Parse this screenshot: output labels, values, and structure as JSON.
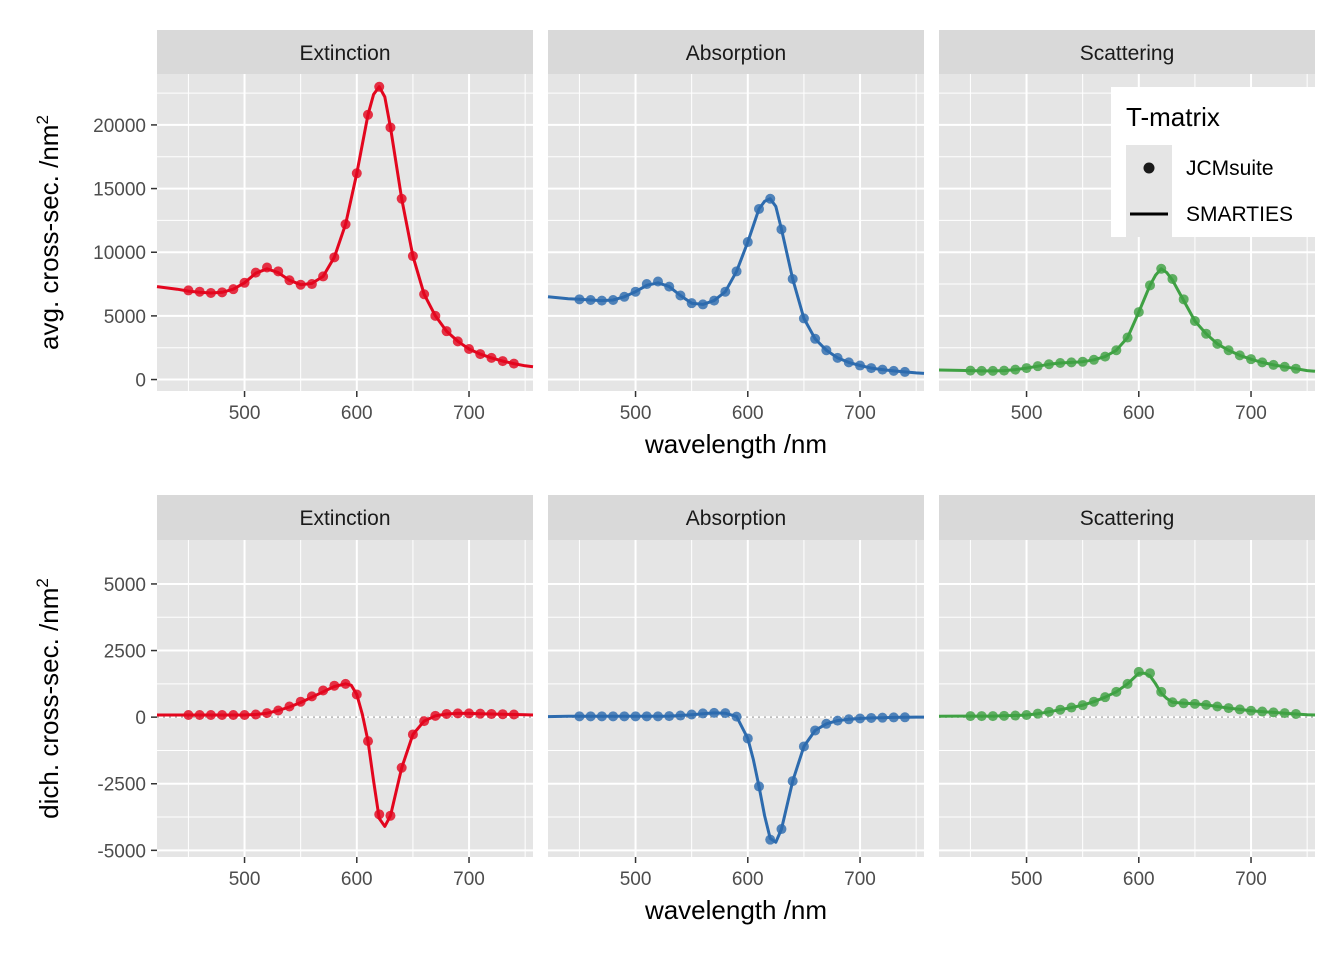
{
  "chart_data": {
    "type": "line",
    "facet_labels": [
      "Extinction",
      "Absorption",
      "Scattering"
    ],
    "x_axis": {
      "title": "wavelength /nm",
      "range": [
        422,
        757
      ],
      "ticks": [
        500,
        600,
        700
      ],
      "minor_ticks": [
        450,
        550,
        650,
        750
      ]
    },
    "rows": [
      {
        "ylabel": "avg. cross-sec. /nm",
        "ylabel_sup": "2",
        "y_range": [
          -900,
          24000
        ],
        "y_ticks": [
          0,
          5000,
          10000,
          15000,
          20000
        ],
        "y_tick_labels": [
          "0",
          "5000",
          "10000",
          "15000",
          "20000"
        ],
        "y_minor_ticks": [
          2500,
          7500,
          12500,
          17500,
          22500
        ],
        "zero_line": false,
        "panels": [
          {
            "facet": "Extinction",
            "color": "#E3061E",
            "line_x": [
              422,
              440,
              450,
              460,
              470,
              480,
              490,
              500,
              510,
              520,
              530,
              540,
              550,
              560,
              570,
              580,
              590,
              600,
              610,
              615,
              620,
              625,
              630,
              640,
              650,
              660,
              670,
              680,
              690,
              700,
              710,
              720,
              730,
              740,
              750,
              757
            ],
            "line_y": [
              7300,
              7100,
              6950,
              6850,
              6800,
              6850,
              7100,
              7600,
              8350,
              8700,
              8400,
              7800,
              7450,
              7550,
              8100,
              9600,
              12200,
              16200,
              20800,
              22400,
              23000,
              22200,
              19800,
              14200,
              9700,
              6700,
              5000,
              3800,
              3000,
              2400,
              2000,
              1700,
              1450,
              1250,
              1080,
              1000
            ],
            "point_x": [
              450,
              460,
              470,
              480,
              490,
              500,
              510,
              520,
              530,
              540,
              550,
              560,
              570,
              580,
              590,
              600,
              610,
              620,
              630,
              640,
              650,
              660,
              670,
              680,
              690,
              700,
              710,
              720,
              730,
              740
            ],
            "point_y": [
              7000,
              6900,
              6800,
              6850,
              7100,
              7600,
              8400,
              8800,
              8500,
              7800,
              7450,
              7500,
              8100,
              9600,
              12200,
              16200,
              20800,
              23000,
              19800,
              14200,
              9700,
              6700,
              5000,
              3800,
              3000,
              2400,
              2000,
              1700,
              1450,
              1250
            ]
          },
          {
            "facet": "Absorption",
            "color": "#2D6BAE",
            "line_x": [
              422,
              440,
              450,
              460,
              470,
              480,
              490,
              500,
              510,
              520,
              530,
              540,
              550,
              560,
              570,
              580,
              590,
              600,
              610,
              615,
              620,
              625,
              630,
              640,
              650,
              660,
              670,
              680,
              690,
              700,
              710,
              720,
              730,
              740,
              750,
              757
            ],
            "line_y": [
              6500,
              6350,
              6300,
              6250,
              6200,
              6250,
              6500,
              6900,
              7400,
              7600,
              7300,
              6600,
              6000,
              5900,
              6200,
              6900,
              8500,
              10800,
              13400,
              14000,
              14200,
              13600,
              11800,
              7900,
              4800,
              3200,
              2300,
              1700,
              1350,
              1100,
              900,
              780,
              680,
              600,
              520,
              480
            ],
            "point_x": [
              450,
              460,
              470,
              480,
              490,
              500,
              510,
              520,
              530,
              540,
              550,
              560,
              570,
              580,
              590,
              600,
              610,
              620,
              630,
              640,
              650,
              660,
              670,
              680,
              690,
              700,
              710,
              720,
              730,
              740
            ],
            "point_y": [
              6300,
              6250,
              6200,
              6250,
              6500,
              6900,
              7500,
              7700,
              7300,
              6600,
              6000,
              5900,
              6200,
              6900,
              8500,
              10800,
              13400,
              14200,
              11800,
              7900,
              4800,
              3200,
              2300,
              1700,
              1350,
              1100,
              900,
              780,
              680,
              600
            ]
          },
          {
            "facet": "Scattering",
            "color": "#3FA143",
            "line_x": [
              422,
              440,
              450,
              460,
              470,
              480,
              490,
              500,
              510,
              520,
              530,
              540,
              550,
              560,
              570,
              580,
              590,
              600,
              610,
              615,
              620,
              625,
              630,
              640,
              650,
              660,
              670,
              680,
              690,
              700,
              710,
              720,
              730,
              740,
              750,
              757
            ],
            "line_y": [
              750,
              720,
              700,
              680,
              680,
              700,
              780,
              900,
              1050,
              1200,
              1300,
              1350,
              1400,
              1550,
              1800,
              2300,
              3300,
              5300,
              7400,
              8200,
              8700,
              8400,
              7800,
              6200,
              4600,
              3600,
              2800,
              2300,
              1900,
              1600,
              1350,
              1150,
              1000,
              850,
              700,
              650
            ],
            "point_x": [
              450,
              460,
              470,
              480,
              490,
              500,
              510,
              520,
              530,
              540,
              550,
              560,
              570,
              580,
              590,
              600,
              610,
              620,
              630,
              640,
              650,
              660,
              670,
              680,
              690,
              700,
              710,
              720,
              730,
              740
            ],
            "point_y": [
              700,
              680,
              680,
              700,
              780,
              900,
              1050,
              1200,
              1300,
              1350,
              1400,
              1550,
              1800,
              2300,
              3300,
              5300,
              7400,
              8700,
              7900,
              6300,
              4600,
              3600,
              2800,
              2300,
              1900,
              1600,
              1350,
              1150,
              1000,
              850
            ]
          }
        ]
      },
      {
        "ylabel": "dich. cross-sec. /nm",
        "ylabel_sup": "2",
        "y_range": [
          -5250,
          6650
        ],
        "y_ticks": [
          -5000,
          -2500,
          0,
          2500,
          5000
        ],
        "y_tick_labels": [
          "-5000",
          "-2500",
          "0",
          "2500",
          "5000"
        ],
        "y_minor_ticks": [
          -3750,
          -1250,
          1250,
          3750
        ],
        "zero_line": true,
        "panels": [
          {
            "facet": "Extinction",
            "color": "#E3061E",
            "line_x": [
              422,
              440,
              450,
              460,
              470,
              480,
              490,
              500,
              510,
              520,
              530,
              540,
              550,
              560,
              570,
              580,
              590,
              595,
              600,
              605,
              610,
              615,
              620,
              625,
              630,
              635,
              640,
              650,
              660,
              670,
              680,
              690,
              700,
              710,
              720,
              730,
              740,
              750,
              757
            ],
            "line_y": [
              80,
              80,
              80,
              80,
              80,
              80,
              80,
              80,
              100,
              150,
              250,
              380,
              550,
              750,
              950,
              1150,
              1250,
              1200,
              850,
              100,
              -900,
              -2400,
              -3800,
              -4100,
              -3700,
              -2800,
              -1900,
              -650,
              -150,
              50,
              120,
              140,
              140,
              130,
              120,
              110,
              100,
              90,
              80
            ],
            "point_x": [
              450,
              460,
              470,
              480,
              490,
              500,
              510,
              520,
              530,
              540,
              550,
              560,
              570,
              580,
              590,
              600,
              610,
              620,
              630,
              640,
              650,
              660,
              670,
              680,
              690,
              700,
              710,
              720,
              730,
              740
            ],
            "point_y": [
              80,
              80,
              80,
              80,
              80,
              80,
              100,
              150,
              250,
              400,
              580,
              780,
              1000,
              1180,
              1250,
              850,
              -900,
              -3650,
              -3700,
              -1900,
              -650,
              -150,
              50,
              120,
              140,
              140,
              130,
              120,
              110,
              100
            ]
          },
          {
            "facet": "Absorption",
            "color": "#2D6BAE",
            "line_x": [
              422,
              440,
              450,
              460,
              470,
              480,
              490,
              500,
              510,
              520,
              530,
              540,
              550,
              560,
              570,
              580,
              590,
              600,
              605,
              610,
              615,
              620,
              625,
              630,
              635,
              640,
              650,
              660,
              670,
              680,
              690,
              700,
              710,
              720,
              730,
              740,
              750,
              757
            ],
            "line_y": [
              20,
              30,
              30,
              30,
              30,
              30,
              30,
              30,
              30,
              30,
              40,
              60,
              90,
              130,
              160,
              150,
              20,
              -800,
              -1600,
              -2600,
              -3700,
              -4550,
              -4700,
              -4200,
              -3300,
              -2400,
              -1100,
              -500,
              -250,
              -130,
              -80,
              -50,
              -30,
              -20,
              -10,
              -5,
              0,
              0
            ],
            "point_x": [
              450,
              460,
              470,
              480,
              490,
              500,
              510,
              520,
              530,
              540,
              550,
              560,
              570,
              580,
              590,
              600,
              610,
              620,
              630,
              640,
              650,
              660,
              670,
              680,
              690,
              700,
              710,
              720,
              730,
              740
            ],
            "point_y": [
              30,
              30,
              30,
              30,
              30,
              30,
              30,
              30,
              40,
              60,
              100,
              140,
              160,
              150,
              20,
              -800,
              -2600,
              -4600,
              -4200,
              -2400,
              -1100,
              -500,
              -250,
              -130,
              -80,
              -50,
              -30,
              -20,
              -10,
              -5
            ]
          },
          {
            "facet": "Scattering",
            "color": "#3FA143",
            "line_x": [
              422,
              440,
              450,
              460,
              470,
              480,
              490,
              500,
              510,
              520,
              530,
              540,
              550,
              560,
              570,
              580,
              590,
              595,
              600,
              605,
              610,
              615,
              620,
              625,
              630,
              640,
              650,
              660,
              670,
              680,
              690,
              700,
              710,
              720,
              730,
              740,
              750,
              757
            ],
            "line_y": [
              30,
              40,
              40,
              40,
              40,
              50,
              60,
              80,
              130,
              200,
              280,
              360,
              450,
              580,
              750,
              950,
              1250,
              1450,
              1650,
              1650,
              1550,
              1250,
              900,
              700,
              560,
              520,
              500,
              460,
              400,
              340,
              290,
              240,
              210,
              180,
              150,
              120,
              90,
              80
            ],
            "point_x": [
              450,
              460,
              470,
              480,
              490,
              500,
              510,
              520,
              530,
              540,
              550,
              560,
              570,
              580,
              590,
              600,
              610,
              620,
              630,
              640,
              650,
              660,
              670,
              680,
              690,
              700,
              710,
              720,
              730,
              740
            ],
            "point_y": [
              40,
              40,
              40,
              50,
              60,
              80,
              130,
              200,
              280,
              360,
              450,
              580,
              750,
              950,
              1250,
              1700,
              1650,
              950,
              560,
              520,
              500,
              460,
              400,
              340,
              290,
              240,
              210,
              180,
              150,
              120
            ]
          }
        ]
      }
    ],
    "legend": {
      "title": "T-matrix",
      "placement": "top-right",
      "entries": [
        {
          "label": "JCMsuite",
          "glyph": "point"
        },
        {
          "label": "SMARTIES",
          "glyph": "line"
        }
      ]
    },
    "panel_background": "#E5E5E5",
    "strip_background": "#D9D9D9",
    "grid_color": "#FFFFFF",
    "zero_line_color": "#B3B3B3",
    "grid": true
  }
}
